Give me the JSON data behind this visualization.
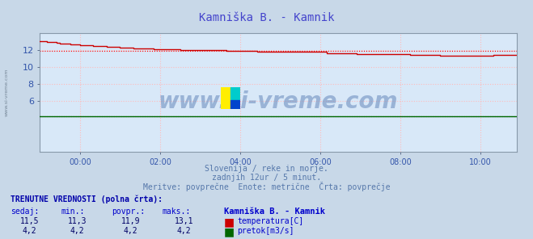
{
  "title": "Kamniška B. - Kamnik",
  "title_color": "#4444cc",
  "bg_color": "#c8d8e8",
  "plot_bg_color": "#d8e8f8",
  "grid_color": "#ffbbbb",
  "grid_linestyle": "dotted",
  "xlabel_times": [
    "00:00",
    "02:00",
    "04:00",
    "06:00",
    "08:00",
    "10:00"
  ],
  "tick_indices": [
    12,
    36,
    60,
    84,
    108,
    132
  ],
  "ylim": [
    0,
    14
  ],
  "yticks": [
    6,
    8,
    10,
    12
  ],
  "temp_color": "#cc0000",
  "temp_avg_color": "#ff0000",
  "flow_color": "#006600",
  "flow_avg_color": "#009900",
  "flow_value": 4.2,
  "temp_avg": 11.9,
  "watermark_text": "www.si-vreme.com",
  "watermark_color": "#6688bb",
  "watermark_alpha": 0.55,
  "subtitle1": "Slovenija / reke in morje.",
  "subtitle2": "zadnjih 12ur / 5 minut.",
  "subtitle3": "Meritve: povprečne  Enote: metrične  Črta: povprečje",
  "subtitle_color": "#5577aa",
  "table_header": "TRENUTNE VREDNOSTI (polna črta):",
  "table_header_color": "#0000aa",
  "col_headers": [
    "sedaj:",
    "min.:",
    "povpr.:",
    "maks.:"
  ],
  "col_header_color": "#0000cc",
  "row1_vals": [
    "11,5",
    "11,3",
    "11,9",
    "13,1"
  ],
  "row2_vals": [
    "4,2",
    "4,2",
    "4,2",
    "4,2"
  ],
  "legend_station": "Kamniška B. - Kamnik",
  "legend_temp": "temperatura[C]",
  "legend_flow": "pretok[m3/s]",
  "val_color": "#000066",
  "n_points": 144,
  "temp_breakpoints_x": [
    0,
    3,
    6,
    10,
    15,
    20,
    25,
    30,
    38,
    45,
    55,
    60,
    65,
    75,
    85,
    90,
    95,
    100,
    110,
    115,
    120,
    125,
    130,
    135,
    138,
    143
  ],
  "temp_breakpoints_y": [
    13.1,
    13.0,
    12.85,
    12.7,
    12.55,
    12.45,
    12.3,
    12.2,
    12.1,
    12.0,
    11.95,
    11.9,
    11.85,
    11.8,
    11.75,
    11.7,
    11.65,
    11.6,
    11.55,
    11.5,
    11.45,
    11.4,
    11.4,
    11.45,
    11.5,
    11.5
  ]
}
